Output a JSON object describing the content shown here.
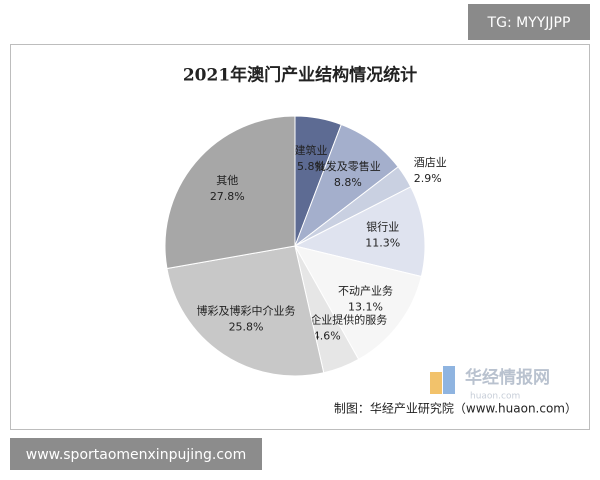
{
  "chart_data": {
    "type": "pie",
    "title": "2021年澳门产业结构情况统计",
    "categories": [
      "建筑业",
      "批发及零售业",
      "酒店业",
      "银行业",
      "不动产业务",
      "租赁及向企业提供的服务",
      "博彩及博彩中介业务",
      "其他"
    ],
    "values": [
      5.8,
      8.8,
      2.9,
      11.3,
      13.1,
      4.6,
      25.8,
      27.8
    ],
    "value_labels": [
      "5.8%",
      "8.8%",
      "2.9%",
      "11.3%",
      "13.1%",
      "4.6%",
      "25.8%",
      "27.8%"
    ],
    "colors": [
      "#5d6b93",
      "#a4afcc",
      "#c9d0e1",
      "#dfe3ef",
      "#f6f6f6",
      "#e6e6e6",
      "#c8c8c8",
      "#a7a7a7"
    ],
    "source": "制图：华经产业研究院（www.huaon.com）"
  },
  "badge": "TG: MYYJJPP",
  "watermark": {
    "title": "华经情报网",
    "url": "huaon.com"
  },
  "footer": "www.sportaomenxinpujing.com"
}
